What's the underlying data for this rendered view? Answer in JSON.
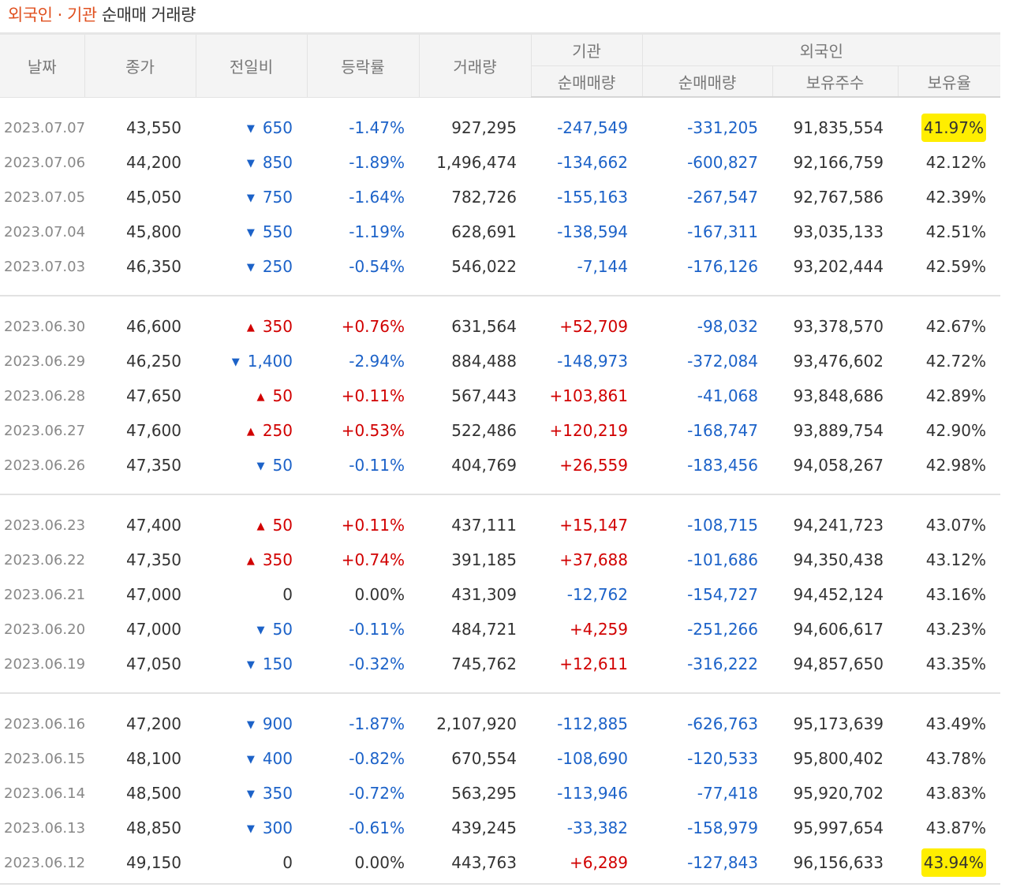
{
  "title": {
    "highlight": "외국인 · 기관",
    "rest": " 순매매 거래량"
  },
  "colors": {
    "up": "#d10000",
    "down": "#1c62c8",
    "highlight": "#ffee00",
    "title_accent": "#e0501f"
  },
  "headers": {
    "date": "날짜",
    "close": "종가",
    "change": "전일비",
    "rate": "등락률",
    "volume": "거래량",
    "institution": "기관",
    "inst_net": "순매매량",
    "foreign": "외국인",
    "for_net": "순매매량",
    "holdings": "보유주수",
    "ratio": "보유율"
  },
  "groups": [
    [
      {
        "date": "2023.07.07",
        "close": "43,550",
        "dir": "down",
        "change": "650",
        "rate": "-1.47%",
        "volume": "927,295",
        "inst": "-247,549",
        "fnet": "-331,205",
        "hold": "91,835,554",
        "ratio": "41.97%",
        "mark": true
      },
      {
        "date": "2023.07.06",
        "close": "44,200",
        "dir": "down",
        "change": "850",
        "rate": "-1.89%",
        "volume": "1,496,474",
        "inst": "-134,662",
        "fnet": "-600,827",
        "hold": "92,166,759",
        "ratio": "42.12%"
      },
      {
        "date": "2023.07.05",
        "close": "45,050",
        "dir": "down",
        "change": "750",
        "rate": "-1.64%",
        "volume": "782,726",
        "inst": "-155,163",
        "fnet": "-267,547",
        "hold": "92,767,586",
        "ratio": "42.39%"
      },
      {
        "date": "2023.07.04",
        "close": "45,800",
        "dir": "down",
        "change": "550",
        "rate": "-1.19%",
        "volume": "628,691",
        "inst": "-138,594",
        "fnet": "-167,311",
        "hold": "93,035,133",
        "ratio": "42.51%"
      },
      {
        "date": "2023.07.03",
        "close": "46,350",
        "dir": "down",
        "change": "250",
        "rate": "-0.54%",
        "volume": "546,022",
        "inst": "-7,144",
        "fnet": "-176,126",
        "hold": "93,202,444",
        "ratio": "42.59%"
      }
    ],
    [
      {
        "date": "2023.06.30",
        "close": "46,600",
        "dir": "up",
        "change": "350",
        "rate": "+0.76%",
        "volume": "631,564",
        "inst": "+52,709",
        "fnet": "-98,032",
        "hold": "93,378,570",
        "ratio": "42.67%"
      },
      {
        "date": "2023.06.29",
        "close": "46,250",
        "dir": "down",
        "change": "1,400",
        "rate": "-2.94%",
        "volume": "884,488",
        "inst": "-148,973",
        "fnet": "-372,084",
        "hold": "93,476,602",
        "ratio": "42.72%"
      },
      {
        "date": "2023.06.28",
        "close": "47,650",
        "dir": "up",
        "change": "50",
        "rate": "+0.11%",
        "volume": "567,443",
        "inst": "+103,861",
        "fnet": "-41,068",
        "hold": "93,848,686",
        "ratio": "42.89%"
      },
      {
        "date": "2023.06.27",
        "close": "47,600",
        "dir": "up",
        "change": "250",
        "rate": "+0.53%",
        "volume": "522,486",
        "inst": "+120,219",
        "fnet": "-168,747",
        "hold": "93,889,754",
        "ratio": "42.90%"
      },
      {
        "date": "2023.06.26",
        "close": "47,350",
        "dir": "down",
        "change": "50",
        "rate": "-0.11%",
        "volume": "404,769",
        "inst": "+26,559",
        "fnet": "-183,456",
        "hold": "94,058,267",
        "ratio": "42.98%"
      }
    ],
    [
      {
        "date": "2023.06.23",
        "close": "47,400",
        "dir": "up",
        "change": "50",
        "rate": "+0.11%",
        "volume": "437,111",
        "inst": "+15,147",
        "fnet": "-108,715",
        "hold": "94,241,723",
        "ratio": "43.07%"
      },
      {
        "date": "2023.06.22",
        "close": "47,350",
        "dir": "up",
        "change": "350",
        "rate": "+0.74%",
        "volume": "391,185",
        "inst": "+37,688",
        "fnet": "-101,686",
        "hold": "94,350,438",
        "ratio": "43.12%"
      },
      {
        "date": "2023.06.21",
        "close": "47,000",
        "dir": "none",
        "change": "0",
        "rate": "0.00%",
        "volume": "431,309",
        "inst": "-12,762",
        "fnet": "-154,727",
        "hold": "94,452,124",
        "ratio": "43.16%"
      },
      {
        "date": "2023.06.20",
        "close": "47,000",
        "dir": "down",
        "change": "50",
        "rate": "-0.11%",
        "volume": "484,721",
        "inst": "+4,259",
        "fnet": "-251,266",
        "hold": "94,606,617",
        "ratio": "43.23%"
      },
      {
        "date": "2023.06.19",
        "close": "47,050",
        "dir": "down",
        "change": "150",
        "rate": "-0.32%",
        "volume": "745,762",
        "inst": "+12,611",
        "fnet": "-316,222",
        "hold": "94,857,650",
        "ratio": "43.35%"
      }
    ],
    [
      {
        "date": "2023.06.16",
        "close": "47,200",
        "dir": "down",
        "change": "900",
        "rate": "-1.87%",
        "volume": "2,107,920",
        "inst": "-112,885",
        "fnet": "-626,763",
        "hold": "95,173,639",
        "ratio": "43.49%"
      },
      {
        "date": "2023.06.15",
        "close": "48,100",
        "dir": "down",
        "change": "400",
        "rate": "-0.82%",
        "volume": "670,554",
        "inst": "-108,690",
        "fnet": "-120,533",
        "hold": "95,800,402",
        "ratio": "43.78%"
      },
      {
        "date": "2023.06.14",
        "close": "48,500",
        "dir": "down",
        "change": "350",
        "rate": "-0.72%",
        "volume": "563,295",
        "inst": "-113,946",
        "fnet": "-77,418",
        "hold": "95,920,702",
        "ratio": "43.83%"
      },
      {
        "date": "2023.06.13",
        "close": "48,850",
        "dir": "down",
        "change": "300",
        "rate": "-0.61%",
        "volume": "439,245",
        "inst": "-33,382",
        "fnet": "-158,979",
        "hold": "95,997,654",
        "ratio": "43.87%"
      },
      {
        "date": "2023.06.12",
        "close": "49,150",
        "dir": "none",
        "change": "0",
        "rate": "0.00%",
        "volume": "443,763",
        "inst": "+6,289",
        "fnet": "-127,843",
        "hold": "96,156,633",
        "ratio": "43.94%",
        "mark": true
      }
    ]
  ]
}
